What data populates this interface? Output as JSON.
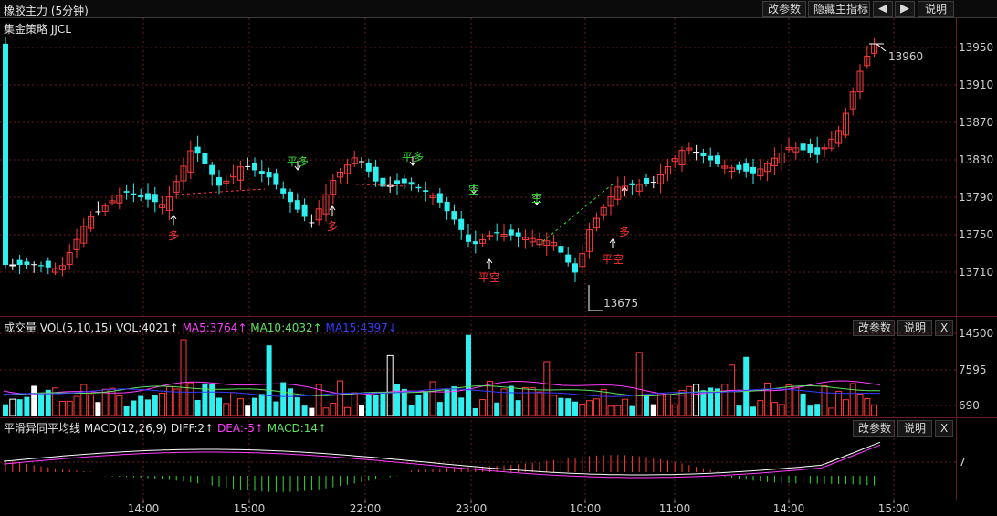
{
  "window": {
    "title": "橡胶主力 (5分钟)",
    "strategy": "集金策略 JJCL",
    "buttons": {
      "params": "改参数",
      "hide_main": "隐藏主指标",
      "prev": "◀",
      "next": "▶",
      "help": "说明"
    }
  },
  "price_panel": {
    "y_ticks": [
      "13950",
      "13910",
      "13870",
      "13830",
      "13790",
      "13750",
      "13710"
    ],
    "high_label": "13960",
    "low_label": "13675",
    "signals": [
      {
        "text": "多",
        "color": "#ff3030"
      },
      {
        "text": "平多",
        "color": "#33dd33"
      },
      {
        "text": "多",
        "color": "#ff3030"
      },
      {
        "text": "平多",
        "color": "#33dd33"
      },
      {
        "text": "空",
        "color": "#33dd33"
      },
      {
        "text": "平空",
        "color": "#ff3030"
      },
      {
        "text": "空",
        "color": "#33dd33"
      },
      {
        "text": "平空",
        "color": "#ff3030"
      },
      {
        "text": "多",
        "color": "#ff3030"
      }
    ]
  },
  "volume_panel": {
    "name": "成交量",
    "indicator": "VOL(5,10,15)",
    "vol": "VOL:4021↑",
    "ma5": "MA5:3764↑",
    "ma10": "MA10:4032↑",
    "ma15": "MA15:4397↓",
    "y_ticks": [
      "14500",
      "7595",
      "690"
    ],
    "buttons": {
      "params": "改参数",
      "help": "说明",
      "close": "X"
    }
  },
  "macd_panel": {
    "name": "平滑异同平均线",
    "indicator": "MACD(12,26,9)",
    "diff": "DIFF:2↑",
    "dea": "DEA:-5↑",
    "macd": "MACD:14↑",
    "y_ticks": [
      "7"
    ],
    "buttons": {
      "params": "改参数",
      "help": "说明",
      "close": "X"
    }
  },
  "time_axis": [
    "14:00",
    "15:00",
    "22:00",
    "23:00",
    "10:00",
    "11:00",
    "14:00",
    "15:00"
  ],
  "colors": {
    "up": "#ff3b3b",
    "down": "#2ff0f0",
    "flat": "#ffffff",
    "grid": "#6a1d1d",
    "ma5": "#ff3cff",
    "ma10": "#5fe35f",
    "ma15": "#3a3aff"
  }
}
